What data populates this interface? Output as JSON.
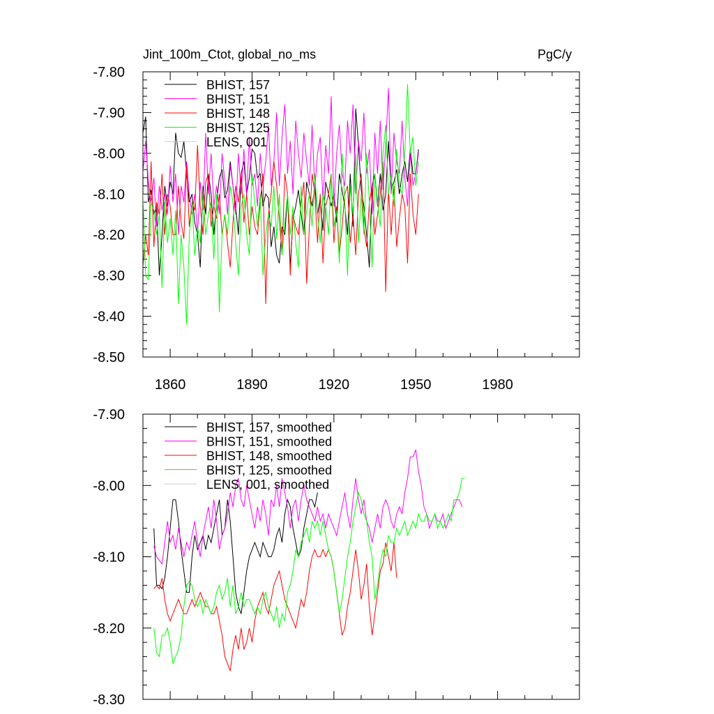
{
  "figure": {
    "title_left": "Jint_100m_Ctot, global_no_ms",
    "title_right": "PgC/y"
  },
  "chart_data": [
    {
      "type": "line",
      "title": "Jint_100m_Ctot, global_no_ms",
      "units": "PgC/y",
      "xlim": [
        1850,
        2010
      ],
      "ylim": [
        -8.5,
        -7.8
      ],
      "xticks": [
        1860,
        1890,
        1920,
        1950,
        1980
      ],
      "xtick_labels": [
        "1860",
        "1890",
        "1920",
        "1950",
        "1980"
      ],
      "yticks": [
        -7.8,
        -7.9,
        -8.0,
        -8.1,
        -8.2,
        -8.3,
        -8.4,
        -8.5
      ],
      "ytick_labels": [
        "-7.80",
        "-7.90",
        "-8.00",
        "-8.10",
        "-8.20",
        "-8.30",
        "-8.40",
        "-8.50"
      ],
      "legend": "top-left",
      "series": [
        {
          "name": "BHIST, 157",
          "color": "#000000",
          "x_start": 1850,
          "values": [
            -7.95,
            -7.91,
            -8.12,
            -8.09,
            -8.15,
            -8.13,
            -8.3,
            -8.2,
            -8.08,
            -8.13,
            -8.07,
            -8.1,
            -7.95,
            -8.0,
            -8.01,
            -7.97,
            -8.05,
            -8.12,
            -8.1,
            -8.17,
            -8.2,
            -8.28,
            -8.08,
            -8.15,
            -8.05,
            -8.1,
            -8.2,
            -8.12,
            -8.06,
            -8.04,
            -8.11,
            -8.09,
            -8.02,
            -8.08,
            -8.13,
            -8.2,
            -8.05,
            -8.02,
            -8.1,
            -8.06,
            -7.99,
            -8.0,
            -8.06,
            -8.05,
            -8.13,
            -8.1,
            -8.11,
            -8.23,
            -8.18,
            -8.25,
            -8.27,
            -8.18,
            -8.2,
            -8.1,
            -8.28,
            -8.16,
            -8.13,
            -8.09,
            -8.15,
            -8.2,
            -8.07,
            -8.1,
            -8.13,
            -8.08,
            -8.15,
            -8.11,
            -8.19,
            -8.07,
            -8.1,
            -8.13,
            -8.1,
            -8.17,
            -8.05,
            -8.09,
            -8.13,
            -8.2,
            -8.05,
            -8.18,
            -7.89,
            -7.98,
            -8.09,
            -8.13,
            -8.2,
            -8.28,
            -8.08,
            -8.05,
            -8.13,
            -8.05,
            -8.14,
            -8.1,
            -7.97,
            -8.09,
            -8.07,
            -8.04,
            -8.1,
            -8.05,
            -8.02,
            -8.07,
            -7.99,
            -8.05,
            -8.05,
            -7.99
          ]
        },
        {
          "name": "BHIST, 151",
          "color": "#ff00ff",
          "x_start": 1850,
          "values": [
            -8.05,
            -7.97,
            -8.07,
            -8.12,
            -8.06,
            -8.18,
            -8.08,
            -8.14,
            -8.1,
            -8.15,
            -8.03,
            -8.12,
            -8.05,
            -8.2,
            -8.08,
            -8.12,
            -8.02,
            -8.1,
            -8.15,
            -8.1,
            -8.2,
            -8.07,
            -8.14,
            -7.95,
            -8.1,
            -8.0,
            -8.13,
            -8.08,
            -8.15,
            -8.0,
            -8.07,
            -8.15,
            -8.03,
            -8.08,
            -8.15,
            -8.0,
            -8.1,
            -7.99,
            -8.1,
            -7.96,
            -8.08,
            -8.05,
            -8.13,
            -8.0,
            -8.08,
            -8.02,
            -7.93,
            -8.08,
            -8.02,
            -7.9,
            -8.08,
            -7.96,
            -7.88,
            -8.05,
            -7.97,
            -8.1,
            -7.92,
            -8.0,
            -8.06,
            -7.95,
            -8.02,
            -8.08,
            -7.93,
            -8.09,
            -8.0,
            -7.96,
            -8.12,
            -7.98,
            -8.05,
            -7.86,
            -8.13,
            -8.0,
            -7.93,
            -8.05,
            -8.08,
            -7.92,
            -8.0,
            -7.88,
            -8.1,
            -7.97,
            -8.02,
            -7.9,
            -8.05,
            -7.99,
            -8.15,
            -7.95,
            -8.05,
            -7.92,
            -8.09,
            -7.98,
            -7.84,
            -8.1,
            -7.95,
            -8.02,
            -8.05,
            -7.92,
            -8.06,
            -8.13,
            -8.0,
            -8.08,
            -8.05,
            -8.0
          ]
        },
        {
          "name": "BHIST, 148",
          "color": "#ff0000",
          "x_start": 1850,
          "values": [
            -8.28,
            -8.2,
            -8.25,
            -8.02,
            -8.23,
            -8.12,
            -8.15,
            -8.05,
            -8.2,
            -8.1,
            -8.13,
            -8.2,
            -8.2,
            -8.08,
            -8.17,
            -8.21,
            -8.03,
            -8.18,
            -8.12,
            -8.14,
            -7.98,
            -8.13,
            -8.2,
            -8.07,
            -8.05,
            -8.18,
            -8.13,
            -8.16,
            -8.1,
            -8.2,
            -8.15,
            -8.22,
            -8.28,
            -8.17,
            -8.08,
            -8.12,
            -8.05,
            -8.17,
            -8.1,
            -8.2,
            -8.13,
            -8.18,
            -8.2,
            -8.12,
            -8.05,
            -8.37,
            -8.15,
            -8.1,
            -8.02,
            -8.08,
            -8.16,
            -8.25,
            -8.05,
            -8.1,
            -8.3,
            -8.15,
            -8.18,
            -8.2,
            -8.12,
            -8.07,
            -8.32,
            -8.18,
            -8.05,
            -8.1,
            -8.22,
            -8.1,
            -8.27,
            -8.13,
            -8.1,
            -8.05,
            -8.22,
            -8.13,
            -8.25,
            -8.18,
            -8.1,
            -8.08,
            -8.22,
            -8.15,
            -8.25,
            -8.1,
            -8.05,
            -8.18,
            -8.23,
            -8.12,
            -8.08,
            -8.2,
            -8.15,
            -8.1,
            -8.02,
            -8.34,
            -8.09,
            -8.2,
            -8.08,
            -8.23,
            -8.16,
            -8.1,
            -8.13,
            -8.27,
            -8.05,
            -8.15,
            -8.2,
            -8.1
          ]
        },
        {
          "name": "BHIST, 125",
          "color": "#00ff00",
          "x_start": 1850,
          "values": [
            -8.1,
            -8.3,
            -8.31,
            -8.12,
            -8.14,
            -8.2,
            -8.15,
            -8.33,
            -8.12,
            -8.22,
            -8.16,
            -8.25,
            -8.14,
            -8.37,
            -8.2,
            -8.28,
            -8.42,
            -8.2,
            -8.12,
            -8.25,
            -8.18,
            -8.22,
            -8.1,
            -8.2,
            -8.15,
            -8.12,
            -8.26,
            -8.1,
            -8.39,
            -8.2,
            -8.15,
            -8.2,
            -8.08,
            -8.12,
            -8.22,
            -8.3,
            -8.13,
            -8.1,
            -8.2,
            -8.25,
            -8.05,
            -8.12,
            -8.18,
            -8.1,
            -8.3,
            -8.2,
            -8.15,
            -8.18,
            -8.08,
            -8.21,
            -8.1,
            -8.25,
            -8.17,
            -8.1,
            -8.2,
            -8.13,
            -8.22,
            -8.28,
            -8.08,
            -8.2,
            -8.14,
            -8.1,
            -8.18,
            -8.05,
            -8.15,
            -8.22,
            -8.1,
            -8.13,
            -8.2,
            -8.05,
            -8.18,
            -8.14,
            -8.27,
            -8.0,
            -8.12,
            -8.3,
            -8.08,
            -8.15,
            -8.0,
            -8.22,
            -8.1,
            -8.2,
            -8.0,
            -8.12,
            -8.28,
            -8.05,
            -8.12,
            -8.18,
            -8.0,
            -7.93,
            -8.1,
            -8.05,
            -8.13,
            -7.99,
            -8.08,
            -8.1,
            -8.0,
            -7.83,
            -8.0,
            -7.96,
            -8.08,
            -8.02
          ]
        },
        {
          "name": "LENS, 001",
          "color": "#c8c8c8",
          "values": []
        }
      ]
    },
    {
      "type": "line",
      "title": "",
      "xlim": [
        1850,
        2010
      ],
      "ylim": [
        -8.3,
        -7.9
      ],
      "xticks": [
        1860,
        1890,
        1920,
        1950,
        1980
      ],
      "xtick_labels": [],
      "yticks": [
        -7.9,
        -8.0,
        -8.1,
        -8.2,
        -8.3
      ],
      "ytick_labels": [
        "-7.90",
        "-8.00",
        "-8.10",
        "-8.20",
        "-8.30"
      ],
      "legend": "top-left",
      "series": [
        {
          "name": "BHIST, 157, smoothed",
          "color": "#000000",
          "x_start": 1854,
          "values": [
            -8.06,
            -8.14,
            -8.14,
            -8.145,
            -8.13,
            -8.1,
            -8.06,
            -8.02,
            -8.02,
            -8.05,
            -8.09,
            -8.12,
            -8.15,
            -8.15,
            -8.1,
            -8.07,
            -8.09,
            -8.08,
            -8.07,
            -8.09,
            -8.07,
            -8.08,
            -8.06,
            -8.04,
            -8.02,
            -8.07,
            -8.06,
            -8.02,
            -8.05,
            -8.1,
            -8.15,
            -8.17,
            -8.18,
            -8.15,
            -8.12,
            -8.1,
            -8.09,
            -8.08,
            -8.09,
            -8.1,
            -8.08,
            -8.09,
            -8.1,
            -8.1,
            -8.09,
            -8.07,
            -8.06,
            -8.08,
            -8.04,
            -8.02,
            -8.03,
            -8.06,
            -8.08,
            -8.1,
            -8.09,
            -8.06,
            -8.04,
            -8.02,
            -8.02,
            -8.03,
            -8.01
          ]
        },
        {
          "name": "BHIST, 151, smoothed",
          "color": "#ff00ff",
          "x_start": 1854,
          "values": [
            -8.085,
            -8.1,
            -8.105,
            -8.11,
            -8.08,
            -8.05,
            -8.08,
            -8.07,
            -8.09,
            -8.06,
            -8.08,
            -8.1,
            -8.08,
            -8.09,
            -8.07,
            -8.05,
            -8.08,
            -8.1,
            -8.07,
            -8.05,
            -8.03,
            -8.06,
            -8.02,
            -8.05,
            -8.09,
            -8.07,
            -8.06,
            -8.04,
            -8.01,
            -8.03,
            -8.0,
            -7.99,
            -8.02,
            -8.03,
            -8.0,
            -8.02,
            -8.04,
            -8.06,
            -8.03,
            -8.05,
            -8.02,
            -8.04,
            -8.07,
            -8.02,
            -8.03,
            -8.0,
            -8.03,
            -7.99,
            -8.01,
            -8.03,
            -8.06,
            -8.03,
            -8.02,
            -8.05,
            -8.02,
            -8.0,
            -8.02,
            -8.03,
            -8.04,
            -8.05,
            -8.03,
            -8.05,
            -8.04,
            -8.06,
            -8.04,
            -8.05,
            -8.06,
            -8.07,
            -8.05,
            -8.03,
            -8.01,
            -8.04,
            -8.06,
            -8.02,
            -7.99,
            -8.02,
            -8.04,
            -8.02,
            -8.05,
            -8.06,
            -8.08,
            -8.06,
            -8.04,
            -8.06,
            -8.03,
            -8.02,
            -8.03,
            -8.05,
            -8.06,
            -8.04,
            -8.03,
            -8.04,
            -8.01,
            -7.99,
            -7.96,
            -7.96,
            -7.95,
            -7.98,
            -8.0,
            -8.03,
            -8.04,
            -8.06,
            -8.05,
            -8.04,
            -8.05,
            -8.05,
            -8.04,
            -8.06,
            -8.05,
            -8.04,
            -8.03,
            -8.02,
            -8.02,
            -8.03
          ]
        },
        {
          "name": "BHIST, 148, smoothed",
          "color": "#ff0000",
          "x_start": 1854,
          "values": [
            -8.145,
            -8.14,
            -8.145,
            -8.13,
            -8.16,
            -8.18,
            -8.19,
            -8.18,
            -8.17,
            -8.16,
            -8.17,
            -8.18,
            -8.18,
            -8.17,
            -8.16,
            -8.17,
            -8.16,
            -8.15,
            -8.16,
            -8.17,
            -8.17,
            -8.18,
            -8.18,
            -8.17,
            -8.19,
            -8.21,
            -8.24,
            -8.25,
            -8.26,
            -8.23,
            -8.21,
            -8.23,
            -8.2,
            -8.23,
            -8.22,
            -8.2,
            -8.22,
            -8.19,
            -8.17,
            -8.16,
            -8.15,
            -8.17,
            -8.18,
            -8.16,
            -8.14,
            -8.13,
            -8.12,
            -8.14,
            -8.16,
            -8.17,
            -8.18,
            -8.19,
            -8.2,
            -8.18,
            -8.16,
            -8.17,
            -8.15,
            -8.12,
            -8.1,
            -8.09,
            -8.1,
            -8.1,
            -8.09,
            -8.1,
            -8.09,
            -8.1,
            -8.12,
            -8.15,
            -8.18,
            -8.21,
            -8.2,
            -8.17,
            -8.15,
            -8.12,
            -8.09,
            -8.12,
            -8.16,
            -8.14,
            -8.11,
            -8.17,
            -8.21,
            -8.18,
            -8.15,
            -8.12,
            -8.11,
            -8.08,
            -8.1,
            -8.12,
            -8.08,
            -8.13
          ]
        },
        {
          "name": "BHIST, 125, smoothed",
          "color": "#00ff00",
          "x_start": 1854,
          "values": [
            -8.2,
            -8.235,
            -8.24,
            -8.21,
            -8.21,
            -8.2,
            -8.22,
            -8.25,
            -8.24,
            -8.23,
            -8.21,
            -8.17,
            -8.14,
            -8.135,
            -8.14,
            -8.16,
            -8.17,
            -8.16,
            -8.18,
            -8.16,
            -8.17,
            -8.18,
            -8.17,
            -8.15,
            -8.14,
            -8.16,
            -8.15,
            -8.13,
            -8.17,
            -8.14,
            -8.18,
            -8.17,
            -8.15,
            -8.17,
            -8.16,
            -8.16,
            -8.17,
            -8.18,
            -8.17,
            -8.18,
            -8.16,
            -8.15,
            -8.17,
            -8.18,
            -8.19,
            -8.17,
            -8.2,
            -8.18,
            -8.19,
            -8.15,
            -8.14,
            -8.12,
            -8.09,
            -8.1,
            -8.08,
            -8.07,
            -8.06,
            -8.08,
            -8.05,
            -8.06,
            -8.05,
            -8.07,
            -8.05,
            -8.07,
            -8.09,
            -8.1,
            -8.12,
            -8.15,
            -8.18,
            -8.16,
            -8.13,
            -8.1,
            -8.08,
            -8.05,
            -8.03,
            -8.01,
            -8.02,
            -8.04,
            -8.05,
            -8.08,
            -8.1,
            -8.16,
            -8.14,
            -8.11,
            -8.09,
            -8.1,
            -8.07,
            -8.08,
            -8.08,
            -8.06,
            -8.07,
            -8.06,
            -8.05,
            -8.07,
            -8.06,
            -8.05,
            -8.06,
            -8.04,
            -8.05,
            -8.05,
            -8.04,
            -8.05,
            -8.05,
            -8.04,
            -8.06,
            -8.05,
            -8.06,
            -8.05,
            -8.04,
            -8.05,
            -8.02,
            -8.02,
            -8.01,
            -7.99,
            -7.99
          ]
        },
        {
          "name": "LENS, 001, smoothed",
          "color": "#c8c8c8",
          "values": []
        }
      ]
    }
  ]
}
